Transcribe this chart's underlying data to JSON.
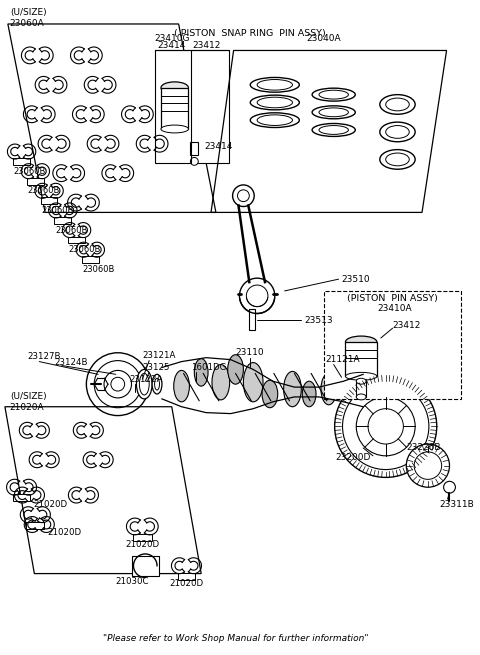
{
  "fig_width": 4.8,
  "fig_height": 6.55,
  "bg_color": "#ffffff",
  "footer": "\"Please refer to Work Shop Manual for further information\"",
  "labels": {
    "usize_top": "(U/SIZE)\n23060A",
    "usize_bottom": "(U/SIZE)\n21020A",
    "top_header": "( PISTON  SNAP RING  PIN ASSY)",
    "23410G": "23410G",
    "23040A": "23040A",
    "23414a": "23414",
    "23412a": "23412",
    "23414b": "23414",
    "23060B": "23060B",
    "23510": "23510",
    "23513": "23513",
    "23127B": "23127B",
    "23124B": "23124B",
    "23110": "23110",
    "1601DG": "1601DG",
    "23121A": "23121A",
    "23125": "23125",
    "23122A": "23122A",
    "21121A": "21121A",
    "23200D": "23200D",
    "23226B": "23226B",
    "23311B": "23311B",
    "21020D": "21020D",
    "21030C": "21030C",
    "piston_pin_assy": "(PISTON  PIN ASSY)",
    "23410A": "23410A",
    "23412b": "23412"
  }
}
